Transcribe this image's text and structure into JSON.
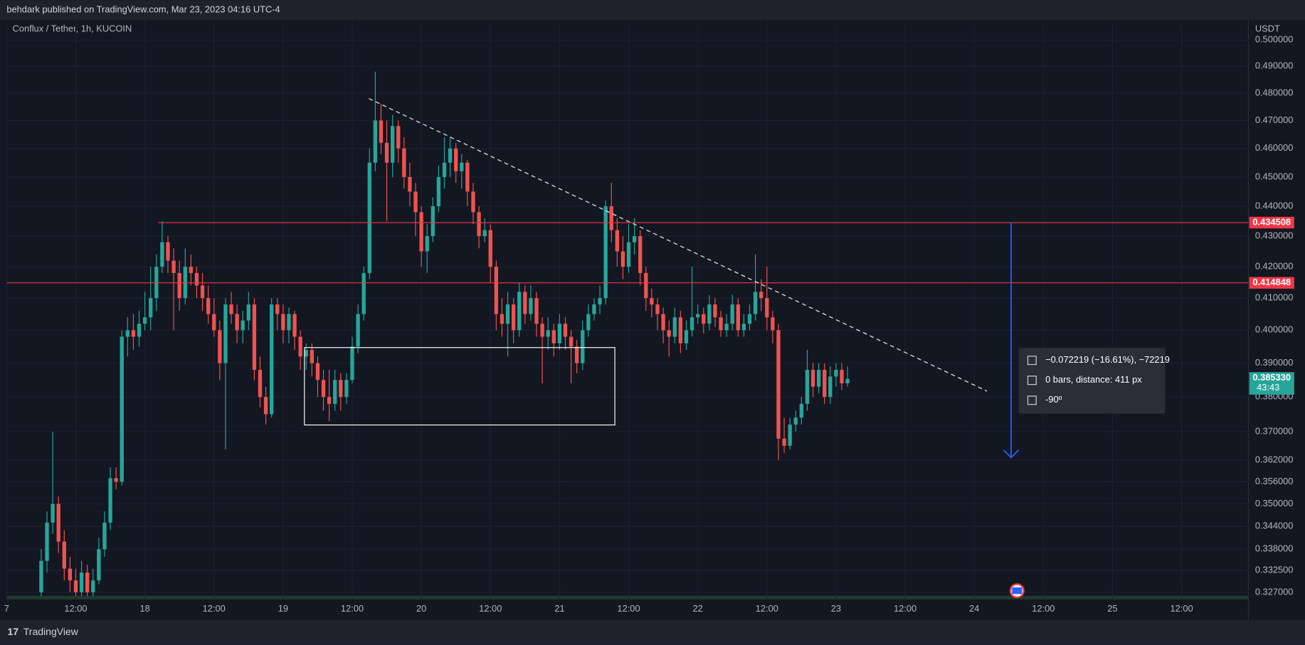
{
  "header": {
    "text": "behdark published on TradingView.com, Mar 23, 2023 04:16 UTC-4"
  },
  "footer": {
    "brand": "TradingView"
  },
  "chart_data": {
    "type": "candlestick",
    "title": "Conflux / Tether, 1h, KUCOIN",
    "y_axis_label": "USDT",
    "log_scale": true,
    "grid": true,
    "up_color": "#26a69a",
    "down_color": "#ef5350",
    "xlim": [
      0,
      215.6
    ],
    "ylim": [
      0.3253,
      0.5077
    ],
    "xticks": [
      {
        "value": 0,
        "label": "7"
      },
      {
        "value": 12,
        "label": "12:00"
      },
      {
        "value": 24,
        "label": "18"
      },
      {
        "value": 36,
        "label": "12:00"
      },
      {
        "value": 48,
        "label": "19"
      },
      {
        "value": 60,
        "label": "12:00"
      },
      {
        "value": 72,
        "label": "20"
      },
      {
        "value": 84,
        "label": "12:00"
      },
      {
        "value": 96,
        "label": "21"
      },
      {
        "value": 108,
        "label": "12:00"
      },
      {
        "value": 120,
        "label": "22"
      },
      {
        "value": 132,
        "label": "12:00"
      },
      {
        "value": 144,
        "label": "23"
      },
      {
        "value": 156,
        "label": "12:00"
      },
      {
        "value": 168,
        "label": "24"
      },
      {
        "value": 180,
        "label": "12:00"
      },
      {
        "value": 192,
        "label": "25"
      },
      {
        "value": 204,
        "label": "12:00"
      }
    ],
    "yticks": [
      {
        "value": 0.327,
        "label": "0.327000"
      },
      {
        "value": 0.3325,
        "label": "0.332500"
      },
      {
        "value": 0.338,
        "label": "0.338000"
      },
      {
        "value": 0.344,
        "label": "0.344000"
      },
      {
        "value": 0.35,
        "label": "0.350000"
      },
      {
        "value": 0.356,
        "label": "0.356000"
      },
      {
        "value": 0.362,
        "label": "0.362000"
      },
      {
        "value": 0.37,
        "label": "0.370000"
      },
      {
        "value": 0.38,
        "label": "0.380000"
      },
      {
        "value": 0.39,
        "label": "0.390000"
      },
      {
        "value": 0.4,
        "label": "0.400000"
      },
      {
        "value": 0.41,
        "label": "0.410000"
      },
      {
        "value": 0.42,
        "label": "0.420000"
      },
      {
        "value": 0.43,
        "label": "0.430000"
      },
      {
        "value": 0.44,
        "label": "0.440000"
      },
      {
        "value": 0.45,
        "label": "0.450000"
      },
      {
        "value": 0.46,
        "label": "0.460000"
      },
      {
        "value": 0.47,
        "label": "0.470000"
      },
      {
        "value": 0.48,
        "label": "0.480000"
      },
      {
        "value": 0.49,
        "label": "0.490000"
      },
      {
        "value": 0.5,
        "label": "0.500000"
      }
    ],
    "x": [
      6,
      7,
      8,
      9,
      10,
      11,
      12,
      13,
      14,
      15,
      16,
      17,
      18,
      19,
      20,
      21,
      22,
      23,
      24,
      25,
      26,
      27,
      28,
      29,
      30,
      31,
      32,
      33,
      34,
      35,
      36,
      37,
      38,
      39,
      40,
      41,
      42,
      43,
      44,
      45,
      46,
      47,
      48,
      49,
      50,
      51,
      52,
      53,
      54,
      55,
      56,
      57,
      58,
      59,
      60,
      61,
      62,
      63,
      64,
      65,
      66,
      67,
      68,
      69,
      70,
      71,
      72,
      73,
      74,
      75,
      76,
      77,
      78,
      79,
      80,
      81,
      82,
      83,
      84,
      85,
      86,
      87,
      88,
      89,
      90,
      91,
      92,
      93,
      94,
      95,
      96,
      97,
      98,
      99,
      100,
      101,
      102,
      103,
      104,
      105,
      106,
      107,
      108,
      109,
      110,
      111,
      112,
      113,
      114,
      115,
      116,
      117,
      118,
      119,
      120,
      121,
      122,
      123,
      124,
      125,
      126,
      127,
      128,
      129,
      130,
      131,
      132,
      133,
      134,
      135,
      136,
      137,
      138,
      139,
      140,
      141,
      142,
      143,
      144,
      145,
      146
    ],
    "ohlc": [
      [
        0.327,
        0.338,
        0.326,
        0.335
      ],
      [
        0.335,
        0.348,
        0.332,
        0.345
      ],
      [
        0.345,
        0.37,
        0.342,
        0.35
      ],
      [
        0.35,
        0.352,
        0.337,
        0.34
      ],
      [
        0.34,
        0.343,
        0.33,
        0.333
      ],
      [
        0.333,
        0.336,
        0.327,
        0.33
      ],
      [
        0.33,
        0.333,
        0.326,
        0.327
      ],
      [
        0.327,
        0.335,
        0.326,
        0.332
      ],
      [
        0.332,
        0.334,
        0.326,
        0.327
      ],
      [
        0.327,
        0.333,
        0.326,
        0.33
      ],
      [
        0.33,
        0.341,
        0.329,
        0.338
      ],
      [
        0.338,
        0.348,
        0.336,
        0.345
      ],
      [
        0.345,
        0.36,
        0.343,
        0.357
      ],
      [
        0.357,
        0.36,
        0.354,
        0.356
      ],
      [
        0.356,
        0.4,
        0.355,
        0.398
      ],
      [
        0.398,
        0.404,
        0.392,
        0.4
      ],
      [
        0.4,
        0.405,
        0.394,
        0.398
      ],
      [
        0.398,
        0.406,
        0.395,
        0.402
      ],
      [
        0.402,
        0.412,
        0.4,
        0.404
      ],
      [
        0.404,
        0.42,
        0.4,
        0.41
      ],
      [
        0.41,
        0.424,
        0.406,
        0.42
      ],
      [
        0.42,
        0.435,
        0.418,
        0.428
      ],
      [
        0.428,
        0.43,
        0.418,
        0.422
      ],
      [
        0.422,
        0.426,
        0.4,
        0.418
      ],
      [
        0.418,
        0.422,
        0.406,
        0.41
      ],
      [
        0.41,
        0.426,
        0.408,
        0.42
      ],
      [
        0.42,
        0.424,
        0.414,
        0.418
      ],
      [
        0.418,
        0.42,
        0.41,
        0.414
      ],
      [
        0.414,
        0.418,
        0.406,
        0.41
      ],
      [
        0.41,
        0.414,
        0.402,
        0.405
      ],
      [
        0.405,
        0.41,
        0.398,
        0.4
      ],
      [
        0.4,
        0.403,
        0.385,
        0.39
      ],
      [
        0.39,
        0.41,
        0.365,
        0.408
      ],
      [
        0.408,
        0.412,
        0.402,
        0.405
      ],
      [
        0.405,
        0.408,
        0.396,
        0.4
      ],
      [
        0.4,
        0.406,
        0.396,
        0.403
      ],
      [
        0.403,
        0.412,
        0.4,
        0.408
      ],
      [
        0.408,
        0.41,
        0.385,
        0.388
      ],
      [
        0.388,
        0.392,
        0.377,
        0.38
      ],
      [
        0.38,
        0.383,
        0.372,
        0.375
      ],
      [
        0.375,
        0.41,
        0.374,
        0.408
      ],
      [
        0.408,
        0.41,
        0.4,
        0.405
      ],
      [
        0.405,
        0.408,
        0.396,
        0.4
      ],
      [
        0.4,
        0.407,
        0.396,
        0.405
      ],
      [
        0.405,
        0.406,
        0.394,
        0.398
      ],
      [
        0.398,
        0.4,
        0.388,
        0.392
      ],
      [
        0.392,
        0.396,
        0.388,
        0.394
      ],
      [
        0.394,
        0.396,
        0.386,
        0.39
      ],
      [
        0.39,
        0.392,
        0.38,
        0.385
      ],
      [
        0.385,
        0.388,
        0.376,
        0.38
      ],
      [
        0.38,
        0.388,
        0.373,
        0.378
      ],
      [
        0.378,
        0.388,
        0.376,
        0.385
      ],
      [
        0.385,
        0.387,
        0.376,
        0.38
      ],
      [
        0.38,
        0.387,
        0.378,
        0.385
      ],
      [
        0.385,
        0.398,
        0.384,
        0.395
      ],
      [
        0.395,
        0.408,
        0.393,
        0.405
      ],
      [
        0.405,
        0.42,
        0.403,
        0.418
      ],
      [
        0.418,
        0.46,
        0.416,
        0.455
      ],
      [
        0.455,
        0.488,
        0.452,
        0.47
      ],
      [
        0.47,
        0.476,
        0.458,
        0.462
      ],
      [
        0.462,
        0.47,
        0.435,
        0.455
      ],
      [
        0.455,
        0.472,
        0.45,
        0.468
      ],
      [
        0.468,
        0.47,
        0.455,
        0.46
      ],
      [
        0.46,
        0.464,
        0.446,
        0.45
      ],
      [
        0.45,
        0.455,
        0.44,
        0.445
      ],
      [
        0.445,
        0.448,
        0.43,
        0.438
      ],
      [
        0.438,
        0.44,
        0.42,
        0.425
      ],
      [
        0.425,
        0.434,
        0.418,
        0.43
      ],
      [
        0.43,
        0.443,
        0.428,
        0.44
      ],
      [
        0.44,
        0.454,
        0.438,
        0.45
      ],
      [
        0.45,
        0.464,
        0.446,
        0.455
      ],
      [
        0.455,
        0.464,
        0.45,
        0.46
      ],
      [
        0.46,
        0.462,
        0.448,
        0.452
      ],
      [
        0.452,
        0.458,
        0.446,
        0.455
      ],
      [
        0.455,
        0.456,
        0.44,
        0.445
      ],
      [
        0.445,
        0.448,
        0.434,
        0.438
      ],
      [
        0.438,
        0.44,
        0.426,
        0.43
      ],
      [
        0.43,
        0.436,
        0.428,
        0.432
      ],
      [
        0.432,
        0.434,
        0.415,
        0.42
      ],
      [
        0.42,
        0.422,
        0.4,
        0.405
      ],
      [
        0.405,
        0.41,
        0.398,
        0.402
      ],
      [
        0.402,
        0.412,
        0.392,
        0.408
      ],
      [
        0.408,
        0.41,
        0.396,
        0.4
      ],
      [
        0.4,
        0.415,
        0.398,
        0.412
      ],
      [
        0.412,
        0.414,
        0.402,
        0.405
      ],
      [
        0.405,
        0.414,
        0.403,
        0.41
      ],
      [
        0.41,
        0.412,
        0.398,
        0.402
      ],
      [
        0.402,
        0.404,
        0.384,
        0.398
      ],
      [
        0.398,
        0.404,
        0.394,
        0.4
      ],
      [
        0.4,
        0.402,
        0.392,
        0.396
      ],
      [
        0.396,
        0.405,
        0.394,
        0.402
      ],
      [
        0.402,
        0.404,
        0.394,
        0.398
      ],
      [
        0.398,
        0.4,
        0.384,
        0.395
      ],
      [
        0.395,
        0.397,
        0.387,
        0.39
      ],
      [
        0.39,
        0.403,
        0.388,
        0.4
      ],
      [
        0.4,
        0.408,
        0.398,
        0.405
      ],
      [
        0.405,
        0.41,
        0.403,
        0.408
      ],
      [
        0.408,
        0.414,
        0.405,
        0.41
      ],
      [
        0.41,
        0.442,
        0.408,
        0.44
      ],
      [
        0.44,
        0.448,
        0.428,
        0.432
      ],
      [
        0.432,
        0.436,
        0.42,
        0.425
      ],
      [
        0.425,
        0.43,
        0.416,
        0.42
      ],
      [
        0.42,
        0.434,
        0.418,
        0.428
      ],
      [
        0.428,
        0.436,
        0.424,
        0.43
      ],
      [
        0.43,
        0.432,
        0.414,
        0.418
      ],
      [
        0.418,
        0.42,
        0.406,
        0.41
      ],
      [
        0.41,
        0.413,
        0.404,
        0.408
      ],
      [
        0.408,
        0.41,
        0.4,
        0.405
      ],
      [
        0.405,
        0.407,
        0.396,
        0.4
      ],
      [
        0.4,
        0.403,
        0.392,
        0.398
      ],
      [
        0.398,
        0.407,
        0.396,
        0.404
      ],
      [
        0.404,
        0.406,
        0.393,
        0.396
      ],
      [
        0.396,
        0.403,
        0.394,
        0.4
      ],
      [
        0.4,
        0.42,
        0.398,
        0.404
      ],
      [
        0.404,
        0.408,
        0.402,
        0.405
      ],
      [
        0.405,
        0.407,
        0.399,
        0.402
      ],
      [
        0.402,
        0.411,
        0.4,
        0.408
      ],
      [
        0.408,
        0.41,
        0.401,
        0.404
      ],
      [
        0.404,
        0.406,
        0.398,
        0.4
      ],
      [
        0.4,
        0.405,
        0.398,
        0.402
      ],
      [
        0.402,
        0.411,
        0.4,
        0.408
      ],
      [
        0.408,
        0.41,
        0.398,
        0.4
      ],
      [
        0.4,
        0.405,
        0.398,
        0.402
      ],
      [
        0.402,
        0.408,
        0.4,
        0.405
      ],
      [
        0.405,
        0.424,
        0.403,
        0.412
      ],
      [
        0.412,
        0.416,
        0.406,
        0.41
      ],
      [
        0.41,
        0.42,
        0.4,
        0.404
      ],
      [
        0.404,
        0.406,
        0.396,
        0.4
      ],
      [
        0.4,
        0.402,
        0.362,
        0.368
      ],
      [
        0.368,
        0.374,
        0.364,
        0.366
      ],
      [
        0.366,
        0.374,
        0.365,
        0.372
      ],
      [
        0.372,
        0.376,
        0.37,
        0.374
      ],
      [
        0.374,
        0.38,
        0.372,
        0.378
      ],
      [
        0.378,
        0.394,
        0.376,
        0.388
      ],
      [
        0.388,
        0.39,
        0.38,
        0.383
      ],
      [
        0.383,
        0.39,
        0.381,
        0.388
      ],
      [
        0.388,
        0.39,
        0.378,
        0.38
      ],
      [
        0.38,
        0.389,
        0.378,
        0.386
      ],
      [
        0.386,
        0.39,
        0.383,
        0.388
      ],
      [
        0.388,
        0.39,
        0.382,
        0.384
      ],
      [
        0.384,
        0.389,
        0.383,
        0.38533
      ]
    ],
    "price_lines": [
      {
        "value": 0.434508,
        "label": "0.434508",
        "color": "#f23645",
        "x_start": 26.3
      },
      {
        "value": 0.414848,
        "label": "0.414848",
        "color": "#f23645",
        "x_start": 0
      }
    ],
    "last_price": {
      "value": 0.38533,
      "label": "0.385330",
      "countdown": "43:43",
      "color": "#26a69a"
    },
    "trendline": {
      "x": [
        62.9,
        170.2
      ],
      "y": [
        0.478,
        0.3817
      ],
      "color": "#d1d4dc"
    },
    "rectangle": {
      "x": [
        51.7,
        105.6
      ],
      "y": [
        0.3947,
        0.3719
      ],
      "color": "#ffffff"
    },
    "arrow": {
      "x": 174.4,
      "y": [
        0.434508,
        0.3627
      ],
      "color": "#2962ff"
    },
    "measure": {
      "lines": [
        "−0.072219 (−16.61%), −72219",
        "0 bars, distance: 411 px",
        "-90º"
      ]
    }
  }
}
